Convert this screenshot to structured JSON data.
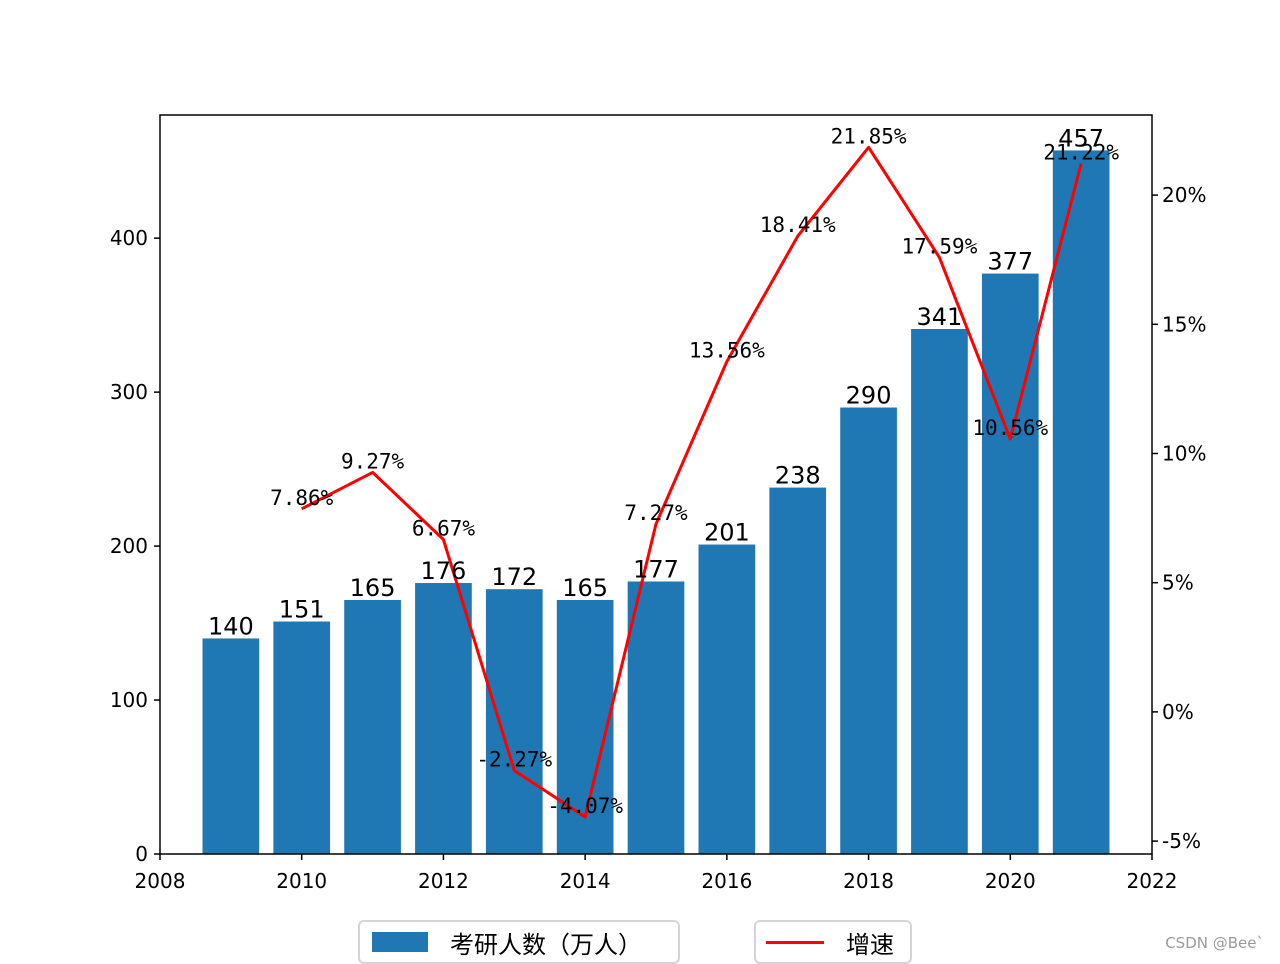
{
  "chart_data": {
    "type": "bar",
    "title": "",
    "xlabel": "",
    "ylabel": "",
    "x": [
      2009,
      2010,
      2011,
      2012,
      2013,
      2014,
      2015,
      2016,
      2017,
      2018,
      2019,
      2020,
      2021
    ],
    "series": [
      {
        "name": "考研人数（万人）",
        "type": "bar",
        "color": "#1f77b4",
        "values": [
          140,
          151,
          165,
          176,
          172,
          165,
          177,
          201,
          238,
          290,
          341,
          377,
          457
        ],
        "labels": [
          "140",
          "151",
          "165",
          "176",
          "172",
          "165",
          "177",
          "201",
          "238",
          "290",
          "341",
          "377",
          "457"
        ]
      },
      {
        "name": "增速",
        "type": "line",
        "axis": "right",
        "color": "#ff0000",
        "x": [
          2010,
          2011,
          2012,
          2013,
          2014,
          2015,
          2016,
          2017,
          2018,
          2019,
          2020,
          2021
        ],
        "values": [
          7.86,
          9.27,
          6.67,
          -2.27,
          -4.07,
          7.27,
          13.56,
          18.41,
          21.85,
          17.59,
          10.56,
          21.22
        ],
        "labels": [
          "7.86%",
          "9.27%",
          "6.67%",
          "-2.27%",
          "-4.07%",
          "7.27%",
          "13.56%",
          "18.41%",
          "21.85%",
          "17.59%",
          "10.56%",
          "21.22%"
        ]
      }
    ],
    "xlim": [
      2008,
      2022
    ],
    "xticks": [
      "2008",
      "2010",
      "2012",
      "2014",
      "2016",
      "2018",
      "2020",
      "2022"
    ],
    "ylim_left": [
      0,
      480
    ],
    "yticks_left": [
      "0",
      "100",
      "200",
      "300",
      "400"
    ],
    "ylim_right": [
      -5.5,
      23.1
    ],
    "yticks_right": [
      "-5%",
      "0%",
      "5%",
      "10%",
      "15%",
      "20%"
    ],
    "legend": [
      "考研人数（万人）",
      "增速"
    ],
    "legend_position": "bottom"
  },
  "watermark": "CSDN @Bee`"
}
